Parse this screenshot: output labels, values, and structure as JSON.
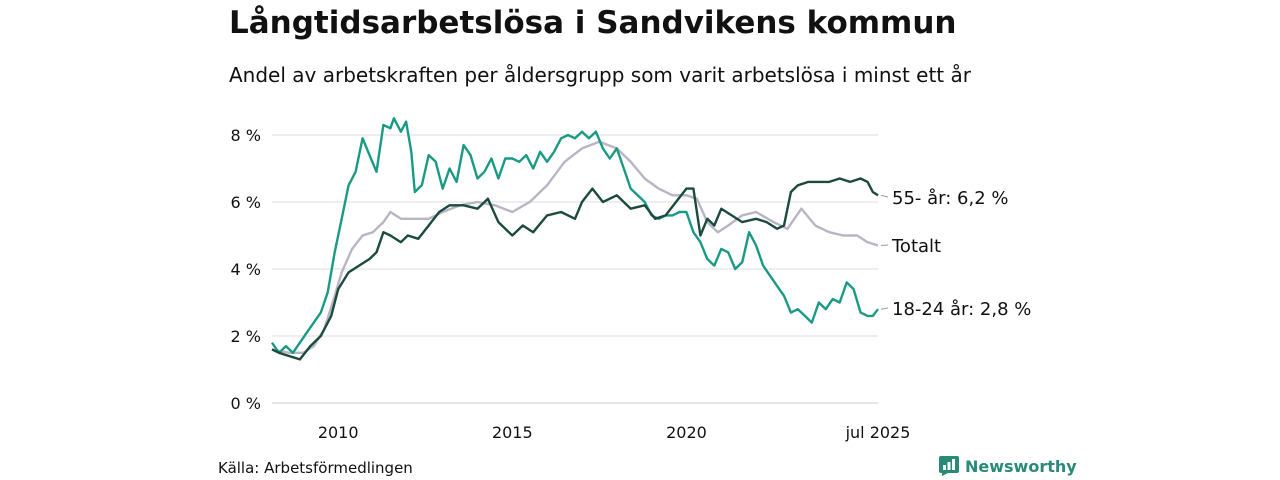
{
  "header": {
    "title": "Långtidsarbetslösa i Sandvikens kommun",
    "subtitle": "Andel av arbetskraften per åldersgrupp som varit arbetslösa i minst ett år"
  },
  "footer": {
    "source": "Källa: Arbetsförmedlingen",
    "brand": "Newsworthy"
  },
  "colors": {
    "youth": "#1a9a85",
    "senior": "#1d4a3e",
    "total": "#b8b5c4",
    "grid": "#dddddd",
    "brand": "#2a8a78"
  },
  "chart_data": {
    "type": "line",
    "title": "Långtidsarbetslösa i Sandvikens kommun",
    "subtitle": "Andel av arbetskraften per åldersgrupp som varit arbetslösa i minst ett år",
    "xlabel": "",
    "ylabel": "",
    "ylim": [
      0,
      8
    ],
    "xlim": [
      2008.1,
      2025.5
    ],
    "x_ticks": [
      {
        "value": 2010,
        "label": "2010"
      },
      {
        "value": 2015,
        "label": "2015"
      },
      {
        "value": 2020,
        "label": "2020"
      },
      {
        "value": 2025.5,
        "label": "jul 2025"
      }
    ],
    "y_ticks": [
      {
        "value": 0,
        "label": "0 %"
      },
      {
        "value": 2,
        "label": "2 %"
      },
      {
        "value": 4,
        "label": "4 %"
      },
      {
        "value": 6,
        "label": "6 %"
      },
      {
        "value": 8,
        "label": "8 %"
      }
    ],
    "grid": true,
    "series": [
      {
        "name": "Totalt",
        "key": "total",
        "end_label": "Totalt",
        "points": [
          [
            2008.1,
            1.6
          ],
          [
            2008.6,
            1.5
          ],
          [
            2009.0,
            1.5
          ],
          [
            2009.3,
            1.7
          ],
          [
            2009.6,
            2.2
          ],
          [
            2009.9,
            3.2
          ],
          [
            2010.1,
            3.9
          ],
          [
            2010.4,
            4.6
          ],
          [
            2010.7,
            5.0
          ],
          [
            2011.0,
            5.1
          ],
          [
            2011.3,
            5.4
          ],
          [
            2011.5,
            5.7
          ],
          [
            2011.8,
            5.5
          ],
          [
            2012.2,
            5.5
          ],
          [
            2012.6,
            5.5
          ],
          [
            2013.0,
            5.7
          ],
          [
            2013.5,
            5.9
          ],
          [
            2014.0,
            6.0
          ],
          [
            2014.5,
            5.9
          ],
          [
            2015.0,
            5.7
          ],
          [
            2015.5,
            6.0
          ],
          [
            2016.0,
            6.5
          ],
          [
            2016.5,
            7.2
          ],
          [
            2017.0,
            7.6
          ],
          [
            2017.5,
            7.8
          ],
          [
            2018.0,
            7.6
          ],
          [
            2018.4,
            7.2
          ],
          [
            2018.8,
            6.7
          ],
          [
            2019.2,
            6.4
          ],
          [
            2019.6,
            6.2
          ],
          [
            2020.0,
            6.2
          ],
          [
            2020.3,
            6.1
          ],
          [
            2020.6,
            5.4
          ],
          [
            2020.9,
            5.1
          ],
          [
            2021.2,
            5.3
          ],
          [
            2021.6,
            5.6
          ],
          [
            2022.0,
            5.7
          ],
          [
            2022.5,
            5.4
          ],
          [
            2022.9,
            5.2
          ],
          [
            2023.3,
            5.8
          ],
          [
            2023.7,
            5.3
          ],
          [
            2024.1,
            5.1
          ],
          [
            2024.5,
            5.0
          ],
          [
            2024.9,
            5.0
          ],
          [
            2025.2,
            4.8
          ],
          [
            2025.5,
            4.7
          ]
        ]
      },
      {
        "name": "18-24 år",
        "key": "youth",
        "end_label": "18-24 år: 2,8 %",
        "points": [
          [
            2008.1,
            1.8
          ],
          [
            2008.3,
            1.5
          ],
          [
            2008.5,
            1.7
          ],
          [
            2008.7,
            1.5
          ],
          [
            2008.9,
            1.8
          ],
          [
            2009.1,
            2.1
          ],
          [
            2009.3,
            2.4
          ],
          [
            2009.5,
            2.7
          ],
          [
            2009.7,
            3.3
          ],
          [
            2009.9,
            4.5
          ],
          [
            2010.1,
            5.5
          ],
          [
            2010.3,
            6.5
          ],
          [
            2010.5,
            6.9
          ],
          [
            2010.7,
            7.9
          ],
          [
            2010.9,
            7.4
          ],
          [
            2011.1,
            6.9
          ],
          [
            2011.3,
            8.3
          ],
          [
            2011.5,
            8.2
          ],
          [
            2011.6,
            8.5
          ],
          [
            2011.8,
            8.1
          ],
          [
            2011.95,
            8.4
          ],
          [
            2012.1,
            7.5
          ],
          [
            2012.2,
            6.3
          ],
          [
            2012.4,
            6.5
          ],
          [
            2012.6,
            7.4
          ],
          [
            2012.8,
            7.2
          ],
          [
            2013.0,
            6.4
          ],
          [
            2013.2,
            7.0
          ],
          [
            2013.4,
            6.6
          ],
          [
            2013.6,
            7.7
          ],
          [
            2013.8,
            7.4
          ],
          [
            2014.0,
            6.7
          ],
          [
            2014.2,
            6.9
          ],
          [
            2014.4,
            7.3
          ],
          [
            2014.6,
            6.7
          ],
          [
            2014.8,
            7.3
          ],
          [
            2015.0,
            7.3
          ],
          [
            2015.2,
            7.2
          ],
          [
            2015.4,
            7.4
          ],
          [
            2015.6,
            7.0
          ],
          [
            2015.8,
            7.5
          ],
          [
            2016.0,
            7.2
          ],
          [
            2016.2,
            7.5
          ],
          [
            2016.4,
            7.9
          ],
          [
            2016.6,
            8.0
          ],
          [
            2016.8,
            7.9
          ],
          [
            2017.0,
            8.1
          ],
          [
            2017.2,
            7.9
          ],
          [
            2017.4,
            8.1
          ],
          [
            2017.6,
            7.6
          ],
          [
            2017.8,
            7.3
          ],
          [
            2018.0,
            7.6
          ],
          [
            2018.2,
            7.0
          ],
          [
            2018.4,
            6.4
          ],
          [
            2018.6,
            6.2
          ],
          [
            2018.8,
            6.0
          ],
          [
            2019.0,
            5.6
          ],
          [
            2019.2,
            5.5
          ],
          [
            2019.4,
            5.6
          ],
          [
            2019.6,
            5.6
          ],
          [
            2019.8,
            5.7
          ],
          [
            2020.0,
            5.7
          ],
          [
            2020.2,
            5.1
          ],
          [
            2020.4,
            4.8
          ],
          [
            2020.6,
            4.3
          ],
          [
            2020.8,
            4.1
          ],
          [
            2021.0,
            4.6
          ],
          [
            2021.2,
            4.5
          ],
          [
            2021.4,
            4.0
          ],
          [
            2021.6,
            4.2
          ],
          [
            2021.8,
            5.1
          ],
          [
            2022.0,
            4.7
          ],
          [
            2022.2,
            4.1
          ],
          [
            2022.4,
            3.8
          ],
          [
            2022.6,
            3.5
          ],
          [
            2022.8,
            3.2
          ],
          [
            2023.0,
            2.7
          ],
          [
            2023.2,
            2.8
          ],
          [
            2023.4,
            2.6
          ],
          [
            2023.6,
            2.4
          ],
          [
            2023.8,
            3.0
          ],
          [
            2024.0,
            2.8
          ],
          [
            2024.2,
            3.1
          ],
          [
            2024.4,
            3.0
          ],
          [
            2024.6,
            3.6
          ],
          [
            2024.8,
            3.4
          ],
          [
            2025.0,
            2.7
          ],
          [
            2025.2,
            2.6
          ],
          [
            2025.35,
            2.6
          ],
          [
            2025.5,
            2.8
          ]
        ]
      },
      {
        "name": "55- år",
        "key": "senior",
        "end_label": "55- år: 6,2 %",
        "points": [
          [
            2008.1,
            1.6
          ],
          [
            2008.3,
            1.5
          ],
          [
            2008.6,
            1.4
          ],
          [
            2008.9,
            1.3
          ],
          [
            2009.2,
            1.7
          ],
          [
            2009.5,
            2.0
          ],
          [
            2009.8,
            2.6
          ],
          [
            2010.0,
            3.4
          ],
          [
            2010.3,
            3.9
          ],
          [
            2010.6,
            4.1
          ],
          [
            2010.9,
            4.3
          ],
          [
            2011.1,
            4.5
          ],
          [
            2011.3,
            5.1
          ],
          [
            2011.5,
            5.0
          ],
          [
            2011.8,
            4.8
          ],
          [
            2012.0,
            5.0
          ],
          [
            2012.3,
            4.9
          ],
          [
            2012.6,
            5.3
          ],
          [
            2012.9,
            5.7
          ],
          [
            2013.2,
            5.9
          ],
          [
            2013.6,
            5.9
          ],
          [
            2014.0,
            5.8
          ],
          [
            2014.3,
            6.1
          ],
          [
            2014.6,
            5.4
          ],
          [
            2015.0,
            5.0
          ],
          [
            2015.3,
            5.3
          ],
          [
            2015.6,
            5.1
          ],
          [
            2016.0,
            5.6
          ],
          [
            2016.4,
            5.7
          ],
          [
            2016.8,
            5.5
          ],
          [
            2017.0,
            6.0
          ],
          [
            2017.3,
            6.4
          ],
          [
            2017.6,
            6.0
          ],
          [
            2018.0,
            6.2
          ],
          [
            2018.4,
            5.8
          ],
          [
            2018.8,
            5.9
          ],
          [
            2019.1,
            5.5
          ],
          [
            2019.4,
            5.6
          ],
          [
            2019.7,
            6.0
          ],
          [
            2020.0,
            6.4
          ],
          [
            2020.2,
            6.4
          ],
          [
            2020.4,
            5.0
          ],
          [
            2020.6,
            5.5
          ],
          [
            2020.8,
            5.3
          ],
          [
            2021.0,
            5.8
          ],
          [
            2021.3,
            5.6
          ],
          [
            2021.6,
            5.4
          ],
          [
            2022.0,
            5.5
          ],
          [
            2022.3,
            5.4
          ],
          [
            2022.6,
            5.2
          ],
          [
            2022.8,
            5.3
          ],
          [
            2023.0,
            6.3
          ],
          [
            2023.2,
            6.5
          ],
          [
            2023.5,
            6.6
          ],
          [
            2023.8,
            6.6
          ],
          [
            2024.1,
            6.6
          ],
          [
            2024.4,
            6.7
          ],
          [
            2024.7,
            6.6
          ],
          [
            2025.0,
            6.7
          ],
          [
            2025.2,
            6.6
          ],
          [
            2025.35,
            6.3
          ],
          [
            2025.5,
            6.2
          ]
        ]
      }
    ]
  }
}
